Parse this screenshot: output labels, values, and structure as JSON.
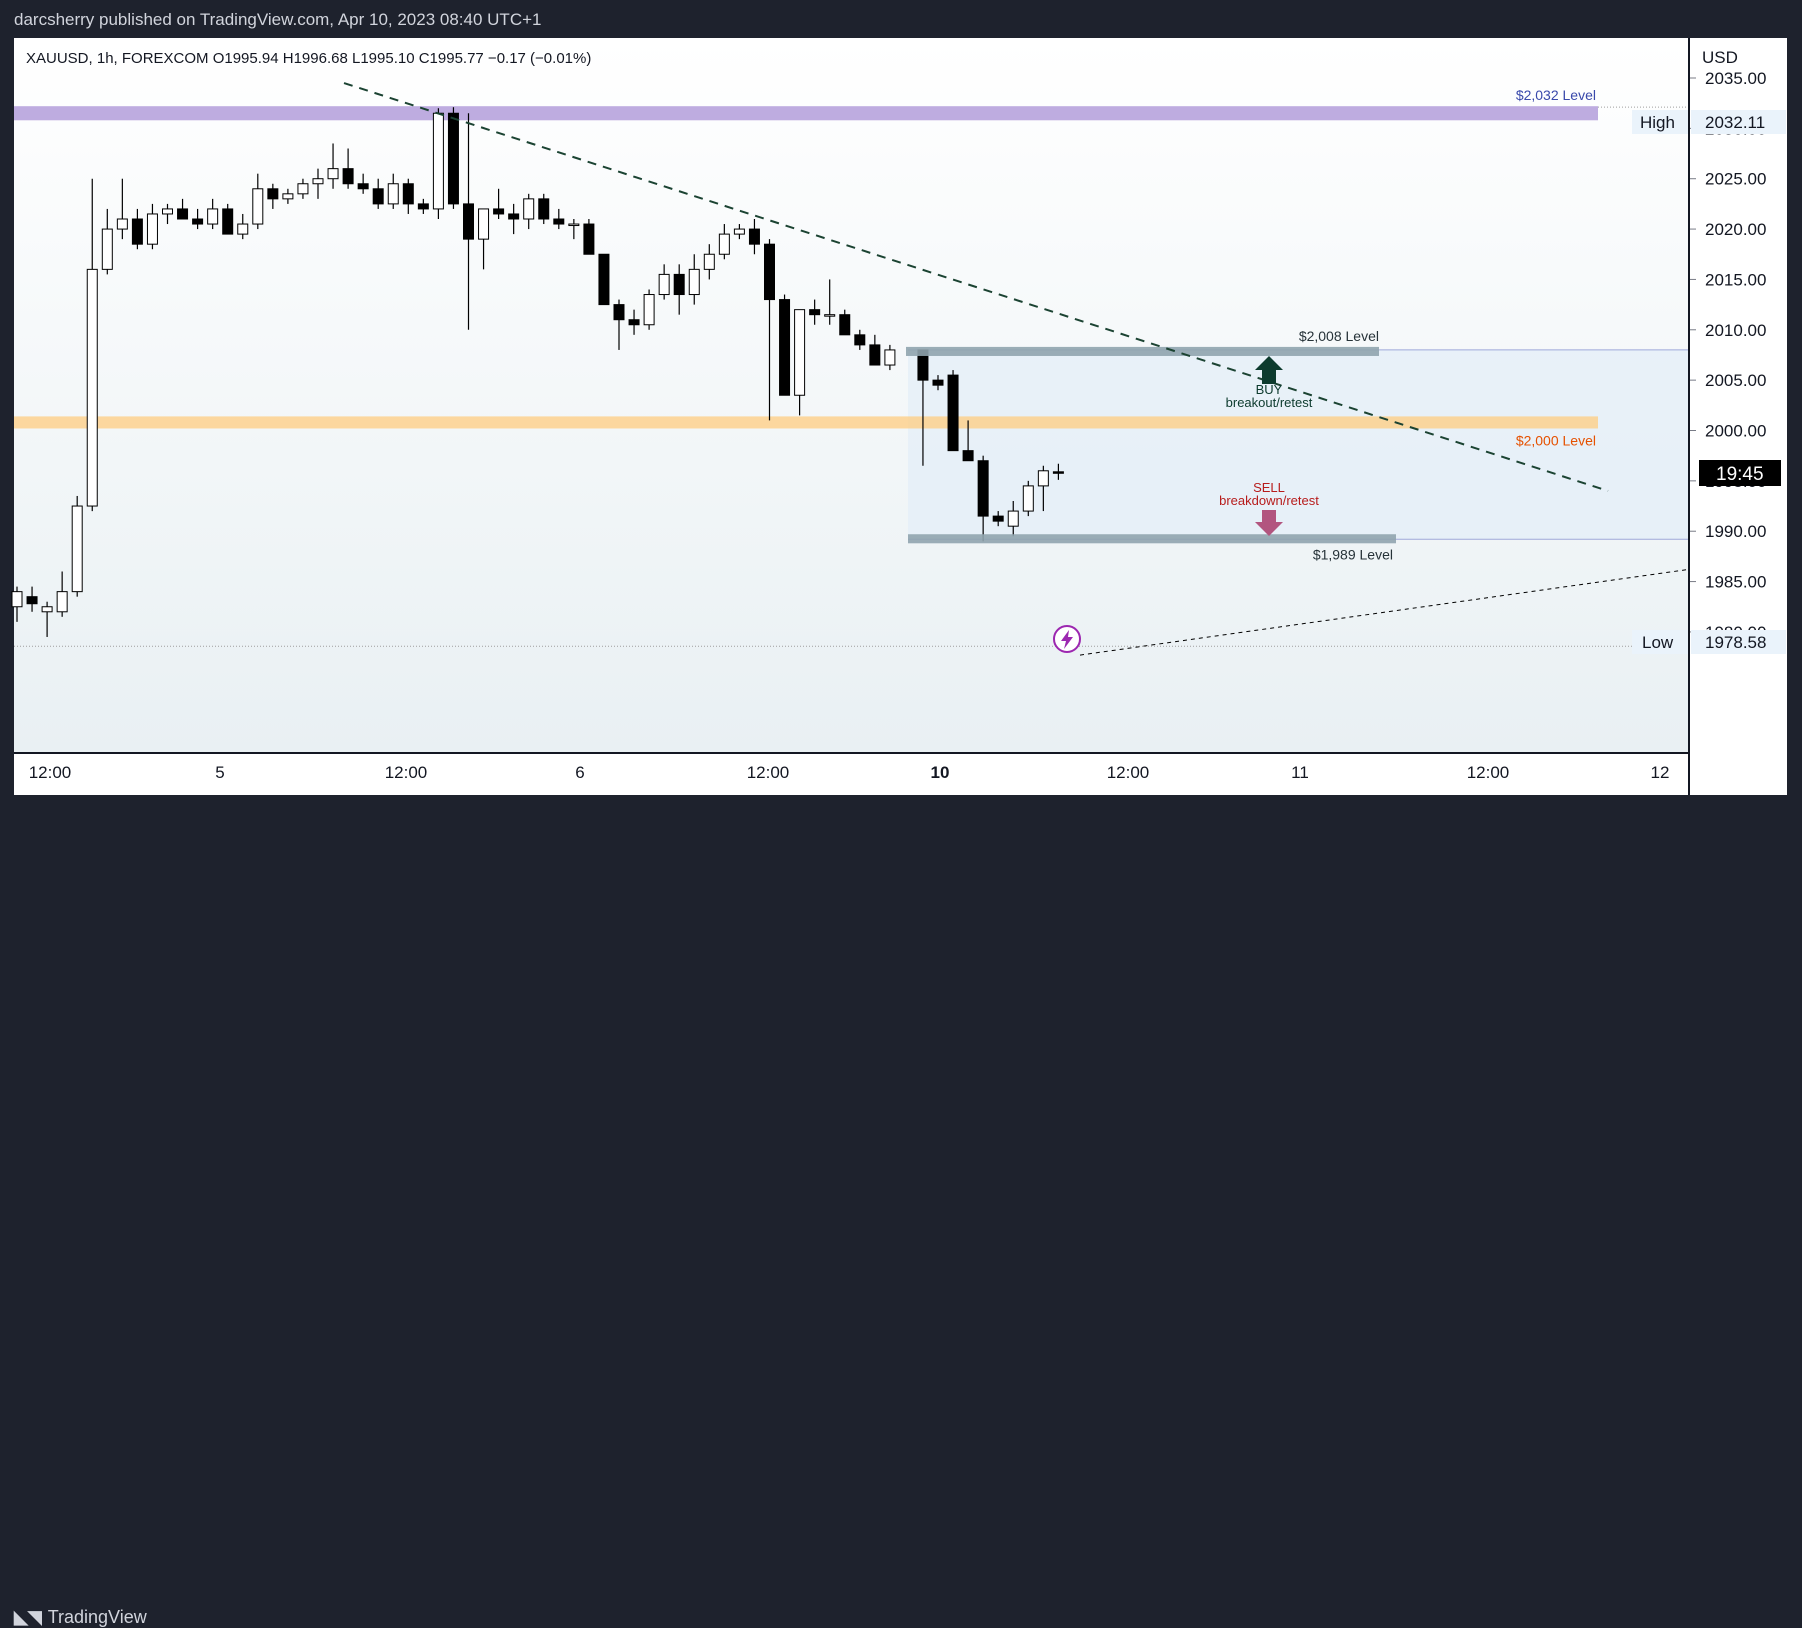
{
  "header": {
    "publisher": "darcsherry published on TradingView.com, Apr 10, 2023 08:40 UTC+1"
  },
  "footer": {
    "brand": "TradingView"
  },
  "chart_data": {
    "type": "candlestick",
    "symbol_line": "XAUUSD, 1h, FOREXCOM  O1995.94  H1996.68  L1995.10  C1995.77  −0.17 (−0.01%)",
    "currency": "USD",
    "y_ticks": [
      "2035.00",
      "2030.00",
      "2025.00",
      "2020.00",
      "2015.00",
      "2010.00",
      "2005.00",
      "2000.00",
      "1995.00",
      "1990.00",
      "1985.00",
      "1980.00"
    ],
    "ylim": [
      1977.5,
      2036.5
    ],
    "x_ticks": [
      "12:00",
      "5",
      "12:00",
      "6",
      "12:00",
      "10",
      "12:00",
      "11",
      "12:00",
      "12"
    ],
    "high_label": "High",
    "high_value": "2032.11",
    "low_label": "Low",
    "low_value": "1978.58",
    "countdown": "19:45",
    "levels": [
      {
        "label": "$2,032 Level",
        "price": 2031.5,
        "color": "#9575cd"
      },
      {
        "label": "$2,008 Level",
        "price": 2007.8,
        "color": "#78909c"
      },
      {
        "label": "$2,000 Level",
        "price": 2000.8,
        "color": "#ffb74d"
      },
      {
        "label": "$1,989 Level",
        "price": 1989.2,
        "color": "#78909c"
      }
    ],
    "buy_label": "BUY",
    "buy_sub": "breakout/retest",
    "sell_label": "SELL",
    "sell_sub": "breakdown/retest",
    "colors": {
      "up": "#ffffff",
      "down": "#000000",
      "buy": "#0d3b2e",
      "sell": "#b2557f",
      "trend": "#1b4332"
    },
    "candles": [
      [
        1982.5,
        1984.5,
        1981.0,
        1984.0
      ],
      [
        1983.5,
        1984.5,
        1982.0,
        1982.8
      ],
      [
        1982.0,
        1983.0,
        1979.5,
        1982.5
      ],
      [
        1982.0,
        1986.0,
        1981.5,
        1984.0
      ],
      [
        1984.0,
        1993.5,
        1983.5,
        1992.5
      ],
      [
        1992.5,
        2025.0,
        1992.0,
        2016.0
      ],
      [
        2016.0,
        2022.0,
        2015.5,
        2020.0
      ],
      [
        2020.0,
        2025.0,
        2019.0,
        2021.0
      ],
      [
        2021.0,
        2022.0,
        2018.0,
        2018.5
      ],
      [
        2018.5,
        2022.5,
        2018.0,
        2021.5
      ],
      [
        2021.5,
        2022.5,
        2020.5,
        2022.0
      ],
      [
        2022.0,
        2023.0,
        2021.0,
        2021.0
      ],
      [
        2021.0,
        2022.0,
        2020.0,
        2020.5
      ],
      [
        2020.5,
        2023.0,
        2020.0,
        2022.0
      ],
      [
        2022.0,
        2022.5,
        2019.5,
        2019.5
      ],
      [
        2019.5,
        2021.5,
        2019.0,
        2020.5
      ],
      [
        2020.5,
        2025.5,
        2020.0,
        2024.0
      ],
      [
        2024.0,
        2024.5,
        2022.0,
        2023.0
      ],
      [
        2023.0,
        2024.0,
        2022.5,
        2023.5
      ],
      [
        2023.5,
        2025.0,
        2023.0,
        2024.5
      ],
      [
        2024.5,
        2026.0,
        2023.0,
        2025.0
      ],
      [
        2025.0,
        2028.5,
        2024.0,
        2026.0
      ],
      [
        2026.0,
        2028.0,
        2024.0,
        2024.5
      ],
      [
        2024.5,
        2025.5,
        2023.5,
        2024.0
      ],
      [
        2024.0,
        2025.0,
        2022.0,
        2022.5
      ],
      [
        2022.5,
        2025.5,
        2022.0,
        2024.5
      ],
      [
        2024.5,
        2025.0,
        2021.5,
        2022.5
      ],
      [
        2022.5,
        2023.0,
        2021.5,
        2022.0
      ],
      [
        2022.0,
        2032.0,
        2021.0,
        2031.5
      ],
      [
        2031.5,
        2032.1,
        2022.0,
        2022.5
      ],
      [
        2022.5,
        2031.5,
        2010.0,
        2019.0
      ],
      [
        2019.0,
        2022.0,
        2016.0,
        2022.0
      ],
      [
        2022.0,
        2024.0,
        2021.0,
        2021.5
      ],
      [
        2021.5,
        2022.5,
        2019.5,
        2021.0
      ],
      [
        2021.0,
        2023.5,
        2020.0,
        2023.0
      ],
      [
        2023.0,
        2023.5,
        2020.5,
        2021.0
      ],
      [
        2021.0,
        2022.0,
        2020.0,
        2020.5
      ],
      [
        2020.5,
        2021.0,
        2019.0,
        2020.5
      ],
      [
        2020.5,
        2021.0,
        2017.5,
        2017.5
      ],
      [
        2017.5,
        2017.5,
        2012.5,
        2012.5
      ],
      [
        2012.5,
        2013.0,
        2008.0,
        2011.0
      ],
      [
        2011.0,
        2012.0,
        2009.5,
        2010.5
      ],
      [
        2010.5,
        2014.0,
        2010.0,
        2013.5
      ],
      [
        2013.5,
        2016.5,
        2013.0,
        2015.5
      ],
      [
        2015.5,
        2016.5,
        2011.5,
        2013.5
      ],
      [
        2013.5,
        2017.5,
        2012.5,
        2016.0
      ],
      [
        2016.0,
        2018.5,
        2015.0,
        2017.5
      ],
      [
        2017.5,
        2020.5,
        2017.0,
        2019.5
      ],
      [
        2019.5,
        2020.5,
        2019.0,
        2020.0
      ],
      [
        2020.0,
        2021.0,
        2017.5,
        2018.5
      ],
      [
        2018.5,
        2019.0,
        2001.0,
        2013.0
      ],
      [
        2013.0,
        2013.5,
        2003.5,
        2003.5
      ],
      [
        2003.5,
        2012.0,
        2001.5,
        2012.0
      ],
      [
        2012.0,
        2013.0,
        2010.5,
        2011.5
      ],
      [
        2011.5,
        2015.0,
        2010.5,
        2011.5
      ],
      [
        2011.5,
        2012.0,
        2009.5,
        2009.5
      ],
      [
        2009.5,
        2010.0,
        2008.0,
        2008.5
      ],
      [
        2008.5,
        2009.5,
        2006.5,
        2006.5
      ],
      [
        2006.5,
        2008.5,
        2006.0,
        2008.0
      ],
      [
        2008.0,
        2008.0,
        1996.5,
        2005.0
      ],
      [
        2005.0,
        2005.5,
        2004.0,
        2004.5
      ],
      [
        2005.5,
        2006.0,
        1998.0,
        1998.0
      ],
      [
        1998.0,
        2001.0,
        1997.0,
        1997.0
      ],
      [
        1997.0,
        1997.5,
        1989.0,
        1991.5
      ],
      [
        1991.5,
        1992.0,
        1990.5,
        1991.0
      ],
      [
        1990.5,
        1993.0,
        1989.5,
        1992.0
      ],
      [
        1992.0,
        1995.0,
        1991.5,
        1994.5
      ],
      [
        1994.5,
        1996.5,
        1992.0,
        1996.0
      ],
      [
        1995.9,
        1996.7,
        1995.1,
        1995.8
      ]
    ]
  }
}
